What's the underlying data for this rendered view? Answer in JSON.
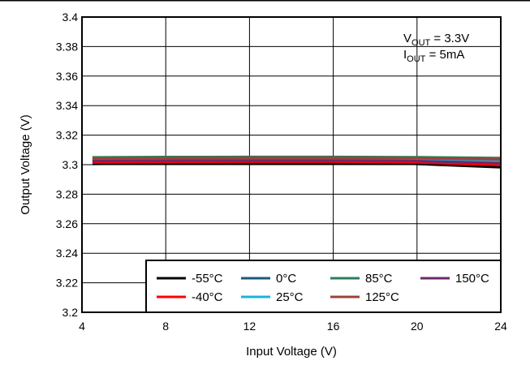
{
  "chart_data": {
    "type": "line",
    "title": "",
    "xlabel": "Input Voltage (V)",
    "ylabel": "Output Voltage (V)",
    "xlim": [
      4,
      24
    ],
    "ylim": [
      3.2,
      3.4
    ],
    "x_ticks": [
      4,
      8,
      12,
      16,
      20,
      24
    ],
    "y_ticks": [
      3.2,
      3.22,
      3.24,
      3.26,
      3.28,
      3.3,
      3.32,
      3.34,
      3.36,
      3.38,
      3.4
    ],
    "x_tick_labels": [
      "4",
      "8",
      "12",
      "16",
      "20",
      "24"
    ],
    "y_tick_labels": [
      "3.2",
      "3.22",
      "3.24",
      "3.26",
      "3.28",
      "3.3",
      "3.32",
      "3.34",
      "3.36",
      "3.38",
      "3.4"
    ],
    "grid": true,
    "legend_position": "bottom-right",
    "annotation": {
      "line1": {
        "main": "V",
        "sub": "OUT",
        "rest": " = 3.3V"
      },
      "line2": {
        "main": "I",
        "sub": "OUT",
        "rest": " = 5mA"
      }
    },
    "series": [
      {
        "name": "-55°C",
        "color": "#000000",
        "x": [
          4.5,
          8,
          12,
          16,
          20,
          24
        ],
        "y": [
          3.3005,
          3.3008,
          3.301,
          3.301,
          3.3005,
          3.2982
        ]
      },
      {
        "name": "-40°C",
        "color": "#ff0000",
        "x": [
          4.5,
          8,
          12,
          16,
          20,
          24
        ],
        "y": [
          3.3015,
          3.3018,
          3.302,
          3.302,
          3.3015,
          3.2998
        ]
      },
      {
        "name": "0°C",
        "color": "#1a5a7a",
        "x": [
          4.5,
          8,
          12,
          16,
          20,
          24
        ],
        "y": [
          3.303,
          3.3032,
          3.3033,
          3.3032,
          3.303,
          3.3018
        ]
      },
      {
        "name": "25°C",
        "color": "#1ab3e0",
        "x": [
          4.5,
          8,
          12,
          16,
          20,
          24
        ],
        "y": [
          3.3035,
          3.3037,
          3.3038,
          3.3037,
          3.3035,
          3.3025
        ]
      },
      {
        "name": "85°C",
        "color": "#2e7d5b",
        "x": [
          4.5,
          8,
          12,
          16,
          20,
          24
        ],
        "y": [
          3.305,
          3.3052,
          3.3053,
          3.3053,
          3.3051,
          3.3045
        ]
      },
      {
        "name": "125°C",
        "color": "#a0403a",
        "x": [
          4.5,
          8,
          12,
          16,
          20,
          24
        ],
        "y": [
          3.3042,
          3.3044,
          3.3045,
          3.3045,
          3.3043,
          3.3035
        ]
      },
      {
        "name": "150°C",
        "color": "#6b2a6b",
        "x": [
          4.5,
          8,
          12,
          16,
          20,
          24
        ],
        "y": [
          3.3025,
          3.3027,
          3.3028,
          3.3028,
          3.3025,
          3.301
        ]
      }
    ]
  }
}
